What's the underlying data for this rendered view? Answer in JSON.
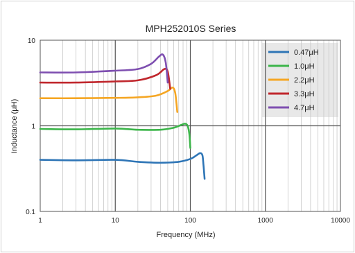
{
  "chart_data": {
    "type": "line",
    "title": "MPH252010S Series",
    "xlabel": "Frequency  (MHz)",
    "ylabel": "Inductance (μH)",
    "xscale": "log",
    "yscale": "log",
    "xlim": [
      1,
      10000
    ],
    "ylim": [
      0.1,
      10
    ],
    "xticks": [
      {
        "value": 1,
        "label": "1"
      },
      {
        "value": 10,
        "label": "10"
      },
      {
        "value": 100,
        "label": "100"
      },
      {
        "value": 1000,
        "label": "1000"
      },
      {
        "value": 10000,
        "label": "10000"
      }
    ],
    "yticks": [
      {
        "value": 0.1,
        "label": "0.1"
      },
      {
        "value": 1,
        "label": "1"
      },
      {
        "value": 10,
        "label": "10"
      }
    ],
    "grid": true,
    "legend_position": "top-right",
    "series": [
      {
        "name": "0.47μH",
        "color": "#2e75b6",
        "x": [
          1,
          3,
          10,
          20,
          40,
          70,
          100,
          120,
          135,
          145,
          150,
          155
        ],
        "y": [
          0.4,
          0.395,
          0.4,
          0.38,
          0.37,
          0.38,
          0.41,
          0.45,
          0.48,
          0.45,
          0.34,
          0.24
        ]
      },
      {
        "name": "1.0μH",
        "color": "#3cb54a",
        "x": [
          1,
          3,
          10,
          20,
          40,
          60,
          75,
          85,
          92,
          97,
          100
        ],
        "y": [
          0.92,
          0.91,
          0.93,
          0.9,
          0.9,
          0.95,
          1.02,
          1.06,
          1.0,
          0.8,
          0.55
        ]
      },
      {
        "name": "2.2μH",
        "color": "#f5a623",
        "x": [
          1,
          3,
          10,
          20,
          35,
          50,
          58,
          63,
          67
        ],
        "y": [
          2.1,
          2.1,
          2.12,
          2.15,
          2.25,
          2.55,
          2.8,
          2.4,
          1.45
        ]
      },
      {
        "name": "3.3μH",
        "color": "#c0272d",
        "x": [
          1,
          3,
          10,
          20,
          35,
          45,
          50,
          54
        ],
        "y": [
          3.2,
          3.2,
          3.3,
          3.4,
          3.9,
          4.6,
          4.3,
          2.7
        ]
      },
      {
        "name": "4.7μH",
        "color": "#7e4fb0",
        "x": [
          1,
          3,
          10,
          20,
          30,
          38,
          43,
          47,
          50
        ],
        "y": [
          4.2,
          4.2,
          4.4,
          4.6,
          5.3,
          6.4,
          6.8,
          5.5,
          3.2
        ]
      }
    ]
  }
}
